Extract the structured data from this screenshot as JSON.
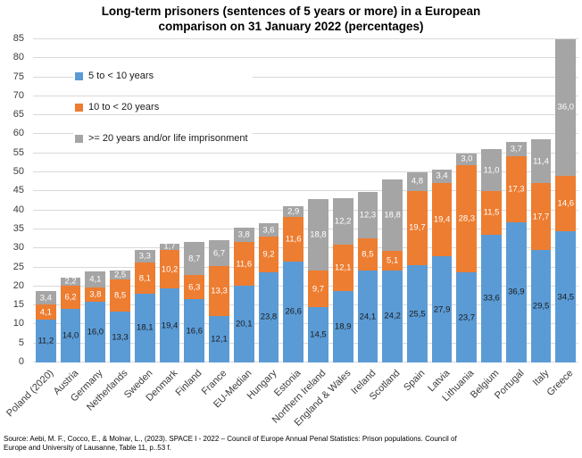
{
  "title": {
    "lines": [
      "Long-term prisoners (sentences of 5 years or more) in a European",
      "comparison on 31 January 2022 (percentages)"
    ]
  },
  "legend": [
    {
      "label": "5 to < 10 years",
      "color": "#5B9BD5"
    },
    {
      "label": "10 to < 20 years",
      "color": "#ED7D31"
    },
    {
      "label": ">= 20 years and/or life imprisonment",
      "color": "#A5A5A5"
    }
  ],
  "chart_data": {
    "type": "bar",
    "stacked": true,
    "title": "Long-term prisoners (sentences of 5 years or more) in a European comparison on 31 January 2022 (percentages)",
    "categories": [
      "Poland (2020)",
      "Austria",
      "Germany",
      "Netherlands",
      "Sweden",
      "Denmark",
      "Finland",
      "France",
      "EU-Median",
      "Hungary",
      "Estonia",
      "Northern Ireland",
      "England & Wales",
      "Ireland",
      "Scotland",
      "Spain",
      "Latvia",
      "Lithuania",
      "Belgium",
      "Portugal",
      "Italy",
      "Greece"
    ],
    "series": [
      {
        "name": "5 to < 10 years",
        "color": "#5B9BD5",
        "label_color": "dark",
        "values": [
          11.2,
          14.0,
          16.0,
          13.3,
          18.1,
          19.4,
          16.6,
          12.1,
          20.1,
          23.8,
          26.6,
          14.5,
          18.9,
          24.1,
          24.2,
          25.5,
          27.9,
          23.7,
          33.6,
          36.9,
          29.5,
          34.5
        ]
      },
      {
        "name": "10 to < 20 years",
        "color": "#ED7D31",
        "label_color": "light",
        "values": [
          4.1,
          6.2,
          3.8,
          8.5,
          8.1,
          10.2,
          6.3,
          13.3,
          11.6,
          9.2,
          11.6,
          9.7,
          12.1,
          8.5,
          5.1,
          19.7,
          19.4,
          28.3,
          11.5,
          17.3,
          17.7,
          14.6
        ]
      },
      {
        "name": ">= 20 years and/or life imprisonment",
        "color": "#A5A5A5",
        "label_color": "light",
        "values": [
          3.4,
          2.2,
          4.1,
          2.5,
          3.3,
          1.7,
          8.7,
          6.7,
          3.8,
          3.6,
          2.9,
          18.8,
          12.2,
          12.3,
          18.8,
          4.8,
          3.4,
          3.0,
          11.0,
          3.7,
          11.4,
          36.0
        ]
      }
    ],
    "ylim": [
      0,
      85
    ],
    "ytick_step": 5,
    "grid": true,
    "legend_position": "inside-top-left",
    "decimal_separator": ",",
    "gridline_color": "#D9D9D9"
  },
  "source": {
    "lines": [
      "Source: Aebi, M. F., Cocco, E., & Molnar, L., (2023). SPACE I - 2022 – Council of Europe Annual Penal Statistics: Prison populations. Council of",
      "Europe and University of Lausanne, Table 11, p..53 f."
    ]
  }
}
